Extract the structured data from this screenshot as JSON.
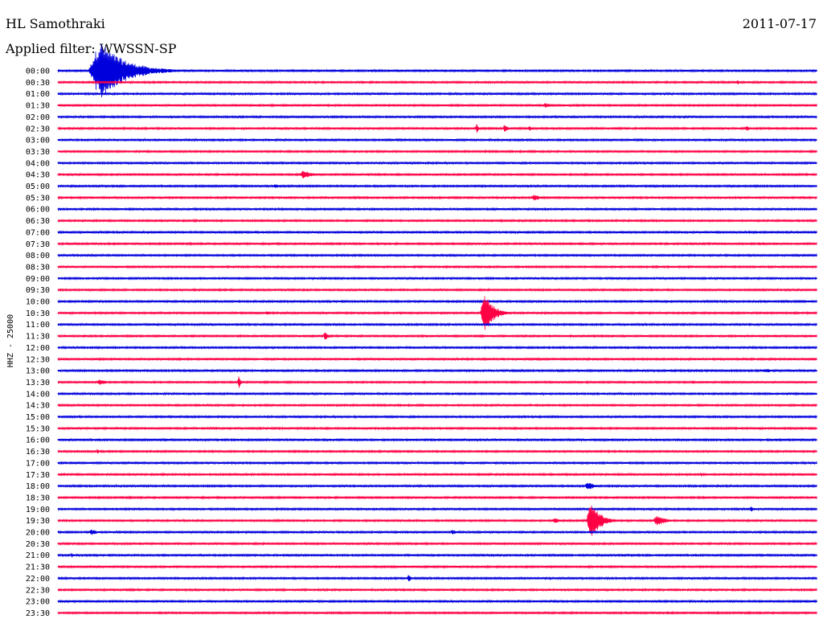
{
  "header": {
    "station": "HL Samothraki",
    "date": "2011-07-17",
    "filter": "Applied filter: WWSSN-SP"
  },
  "colors": {
    "odd_trace": "#0000dd",
    "even_trace": "#ff0044",
    "text": "#000000"
  },
  "chart_data": {
    "type": "line",
    "title": "HL Samothraki",
    "ylabel": "HHZ - 25000",
    "row_labels": [
      "00:00",
      "00:30",
      "01:00",
      "01:30",
      "02:00",
      "02:30",
      "03:00",
      "03:30",
      "04:00",
      "04:30",
      "05:00",
      "05:30",
      "06:00",
      "06:30",
      "07:00",
      "07:30",
      "08:00",
      "08:30",
      "09:00",
      "09:30",
      "10:00",
      "10:30",
      "11:00",
      "11:30",
      "12:00",
      "12:30",
      "13:00",
      "13:30",
      "14:00",
      "14:30",
      "15:00",
      "15:30",
      "16:00",
      "16:30",
      "17:00",
      "17:30",
      "18:00",
      "18:30",
      "19:00",
      "19:30",
      "20:00",
      "20:30",
      "21:00",
      "21:30",
      "22:00",
      "22:30",
      "23:00",
      "23:30"
    ],
    "row_colors": [
      "blue",
      "red"
    ],
    "minutes_per_row": 30,
    "events": [
      {
        "row": "00:00",
        "start_min": 1.2,
        "duration_min": 3.8,
        "amplitude": 38
      },
      {
        "row": "00:30",
        "start_min": 26.8,
        "duration_min": 0.6,
        "amplitude": 3
      },
      {
        "row": "01:30",
        "start_min": 19.2,
        "duration_min": 0.6,
        "amplitude": 4
      },
      {
        "row": "02:30",
        "start_min": 16.5,
        "duration_min": 0.4,
        "amplitude": 6
      },
      {
        "row": "02:30",
        "start_min": 17.6,
        "duration_min": 0.5,
        "amplitude": 6
      },
      {
        "row": "02:30",
        "start_min": 18.6,
        "duration_min": 0.3,
        "amplitude": 5
      },
      {
        "row": "02:30",
        "start_min": 27.1,
        "duration_min": 0.9,
        "amplitude": 3
      },
      {
        "row": "04:30",
        "start_min": 9.5,
        "duration_min": 1.6,
        "amplitude": 5
      },
      {
        "row": "05:00",
        "start_min": 8.5,
        "duration_min": 0.8,
        "amplitude": 3
      },
      {
        "row": "05:30",
        "start_min": 18.7,
        "duration_min": 1.1,
        "amplitude": 4
      },
      {
        "row": "06:30",
        "start_min": 13.1,
        "duration_min": 0.4,
        "amplitude": 3
      },
      {
        "row": "10:30",
        "start_min": 16.7,
        "duration_min": 1.3,
        "amplitude": 28
      },
      {
        "row": "10:30",
        "start_min": 8.2,
        "duration_min": 0.4,
        "amplitude": 4
      },
      {
        "row": "11:00",
        "start_min": 27.3,
        "duration_min": 0.3,
        "amplitude": 3
      },
      {
        "row": "11:30",
        "start_min": 10.5,
        "duration_min": 0.4,
        "amplitude": 7
      },
      {
        "row": "13:00",
        "start_min": 27.8,
        "duration_min": 1.2,
        "amplitude": 3
      },
      {
        "row": "13:30",
        "start_min": 1.5,
        "duration_min": 1.2,
        "amplitude": 4
      },
      {
        "row": "13:30",
        "start_min": 7.1,
        "duration_min": 0.3,
        "amplitude": 9
      },
      {
        "row": "16:30",
        "start_min": 1.5,
        "duration_min": 0.4,
        "amplitude": 3
      },
      {
        "row": "17:30",
        "start_min": 25.4,
        "duration_min": 0.2,
        "amplitude": 3
      },
      {
        "row": "18:00",
        "start_min": 20.8,
        "duration_min": 1.3,
        "amplitude": 5
      },
      {
        "row": "19:00",
        "start_min": 27.3,
        "duration_min": 0.8,
        "amplitude": 3
      },
      {
        "row": "19:30",
        "start_min": 20.9,
        "duration_min": 1.4,
        "amplitude": 28
      },
      {
        "row": "19:30",
        "start_min": 19.5,
        "duration_min": 1.0,
        "amplitude": 4
      },
      {
        "row": "19:30",
        "start_min": 23.5,
        "duration_min": 1.5,
        "amplitude": 7
      },
      {
        "row": "20:00",
        "start_min": 1.2,
        "duration_min": 1.0,
        "amplitude": 4
      },
      {
        "row": "20:00",
        "start_min": 15.5,
        "duration_min": 0.8,
        "amplitude": 3
      },
      {
        "row": "21:00",
        "start_min": 0.5,
        "duration_min": 0.3,
        "amplitude": 3
      },
      {
        "row": "21:30",
        "start_min": 9.3,
        "duration_min": 0.6,
        "amplitude": 2
      },
      {
        "row": "22:00",
        "start_min": 13.8,
        "duration_min": 0.4,
        "amplitude": 6
      }
    ]
  }
}
